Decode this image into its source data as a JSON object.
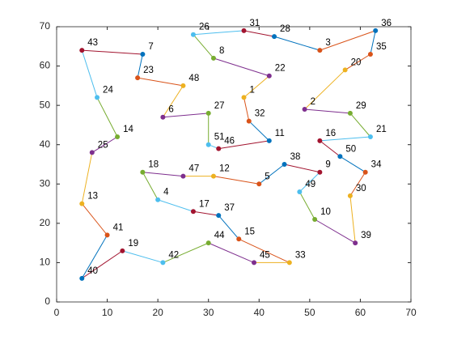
{
  "chart_data": {
    "type": "route",
    "labels": [
      "36",
      "35",
      "20",
      "2",
      "29",
      "21",
      "16",
      "50",
      "34",
      "30",
      "39",
      "10",
      "49",
      "9",
      "38",
      "5",
      "12",
      "47",
      "18",
      "4",
      "17",
      "37",
      "15",
      "33",
      "45",
      "44",
      "42",
      "19",
      "40",
      "41",
      "13",
      "25",
      "14",
      "24",
      "43",
      "7",
      "23",
      "48",
      "6",
      "27",
      "51",
      "46",
      "11",
      "32",
      "1",
      "22",
      "8",
      "26",
      "31",
      "28",
      "3"
    ],
    "x": [
      63,
      62,
      57,
      49,
      58,
      62,
      52,
      56,
      61,
      58,
      59,
      51,
      48,
      52,
      45,
      40,
      31,
      25,
      17,
      20,
      27,
      32,
      36,
      46,
      39,
      30,
      21,
      13,
      5,
      10,
      5,
      7,
      12,
      8,
      5,
      17,
      16,
      25,
      21,
      30,
      30,
      32,
      42,
      38,
      37,
      42,
      31,
      27,
      37,
      43,
      52
    ],
    "y": [
      69,
      63,
      59,
      49,
      48,
      42,
      41,
      37,
      33,
      27,
      15,
      21,
      28,
      33,
      35,
      30,
      32,
      32,
      33,
      26,
      23,
      22,
      16,
      10,
      10,
      15,
      10,
      13,
      6,
      17,
      25,
      38,
      42,
      52,
      64,
      63,
      57,
      55,
      47,
      48,
      40,
      39,
      41,
      46,
      52,
      57.5,
      62,
      68,
      69,
      67.5,
      64
    ],
    "colors": [
      "#0072bd",
      "#d95319",
      "#edb120",
      "#7e2f8e",
      "#77ac30",
      "#4dbeee",
      "#a2142f"
    ],
    "closed": true,
    "xlim": [
      0,
      70
    ],
    "ylim": [
      0,
      70
    ],
    "xticks": [
      0,
      10,
      20,
      30,
      40,
      50,
      60,
      70
    ],
    "yticks": [
      0,
      10,
      20,
      30,
      40,
      50,
      60,
      70
    ]
  }
}
